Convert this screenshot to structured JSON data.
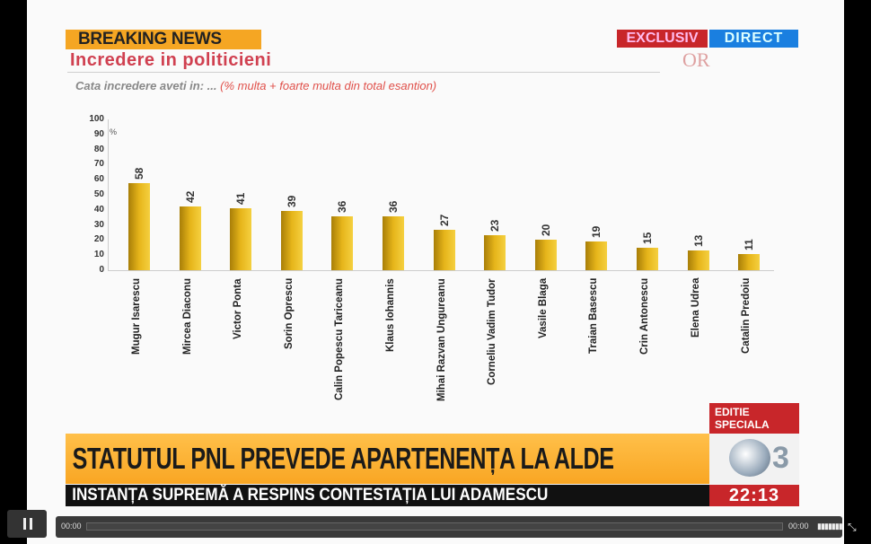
{
  "overlay": {
    "breaking": "BREAKING NEWS",
    "exclusiv": "EXCLUSIV",
    "direct": "DIRECT",
    "logo_text": "OR",
    "editie": "EDITIE SPECIALA",
    "headline": "STATUTUL PNL PREVEDE APARTENENȚA LA ALDE",
    "ticker": "INSTANȚA SUPREMĂ A RESPINS CONTESTAȚIA LUI ADAMESCU",
    "time": "22:13",
    "channel_logo": "3"
  },
  "chart_data": {
    "type": "bar",
    "title": "Incredere in politicieni",
    "subtitle": "Cata incredere aveti in: ...",
    "subtitle_note": "(% multa + foarte multa din  total esantion)",
    "ylabel": "%",
    "ylim": [
      0,
      100
    ],
    "yticks": [
      0,
      10,
      20,
      30,
      40,
      50,
      60,
      70,
      80,
      90,
      100
    ],
    "categories": [
      "Mugur Isarescu",
      "Mircea Diaconu",
      "Victor Ponta",
      "Sorin Oprescu",
      "Calin Popescu Tariceanu",
      "Klaus Iohannis",
      "Mihai Razvan Ungureanu",
      "Corneliu Vadim Tudor",
      "Vasile Blaga",
      "Traian Basescu",
      "Crin Antonescu",
      "Elena Udrea",
      "Catalin Predoiu"
    ],
    "values": [
      58,
      42,
      41,
      39,
      36,
      36,
      27,
      23,
      20,
      19,
      15,
      13,
      11
    ],
    "bar_color": "#e6b51a"
  },
  "player": {
    "current_time": "00:00",
    "duration": "00:00",
    "progress": 0
  }
}
